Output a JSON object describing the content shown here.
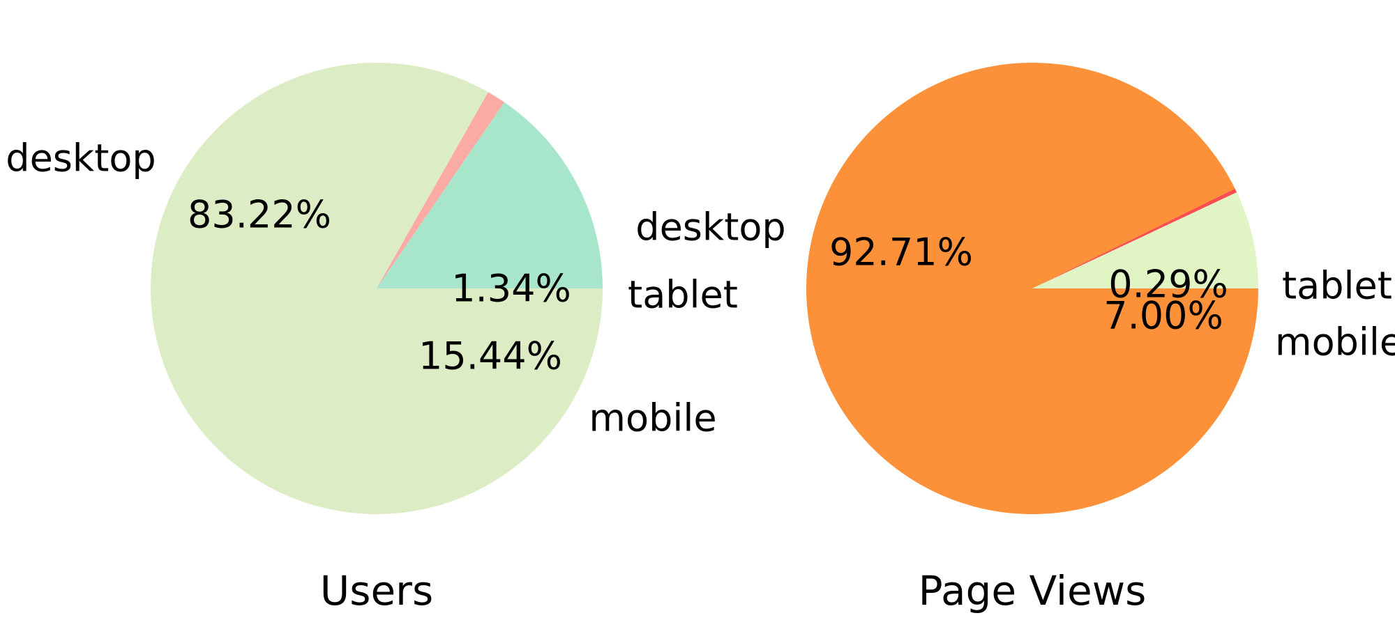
{
  "chart_data": [
    {
      "type": "pie",
      "title": "Users",
      "start_angle_deg": 0,
      "direction": "clockwise",
      "slices": [
        {
          "label": "desktop",
          "value": 83.22,
          "pct_label": "83.22%",
          "color": "#dcecc4"
        },
        {
          "label": "tablet",
          "value": 1.34,
          "pct_label": "1.34%",
          "color": "#fcaaa4"
        },
        {
          "label": "mobile",
          "value": 15.44,
          "pct_label": "15.44%",
          "color": "#a8e6cc"
        }
      ]
    },
    {
      "type": "pie",
      "title": "Page Views",
      "start_angle_deg": 0,
      "direction": "clockwise",
      "slices": [
        {
          "label": "desktop",
          "value": 92.71,
          "pct_label": "92.71%",
          "color": "#fc913a"
        },
        {
          "label": "tablet",
          "value": 0.29,
          "pct_label": "0.29%",
          "color": "#fc4e4e"
        },
        {
          "label": "mobile",
          "value": 7.0,
          "pct_label": "7.00%",
          "color": "#e0f4c4"
        }
      ]
    }
  ]
}
